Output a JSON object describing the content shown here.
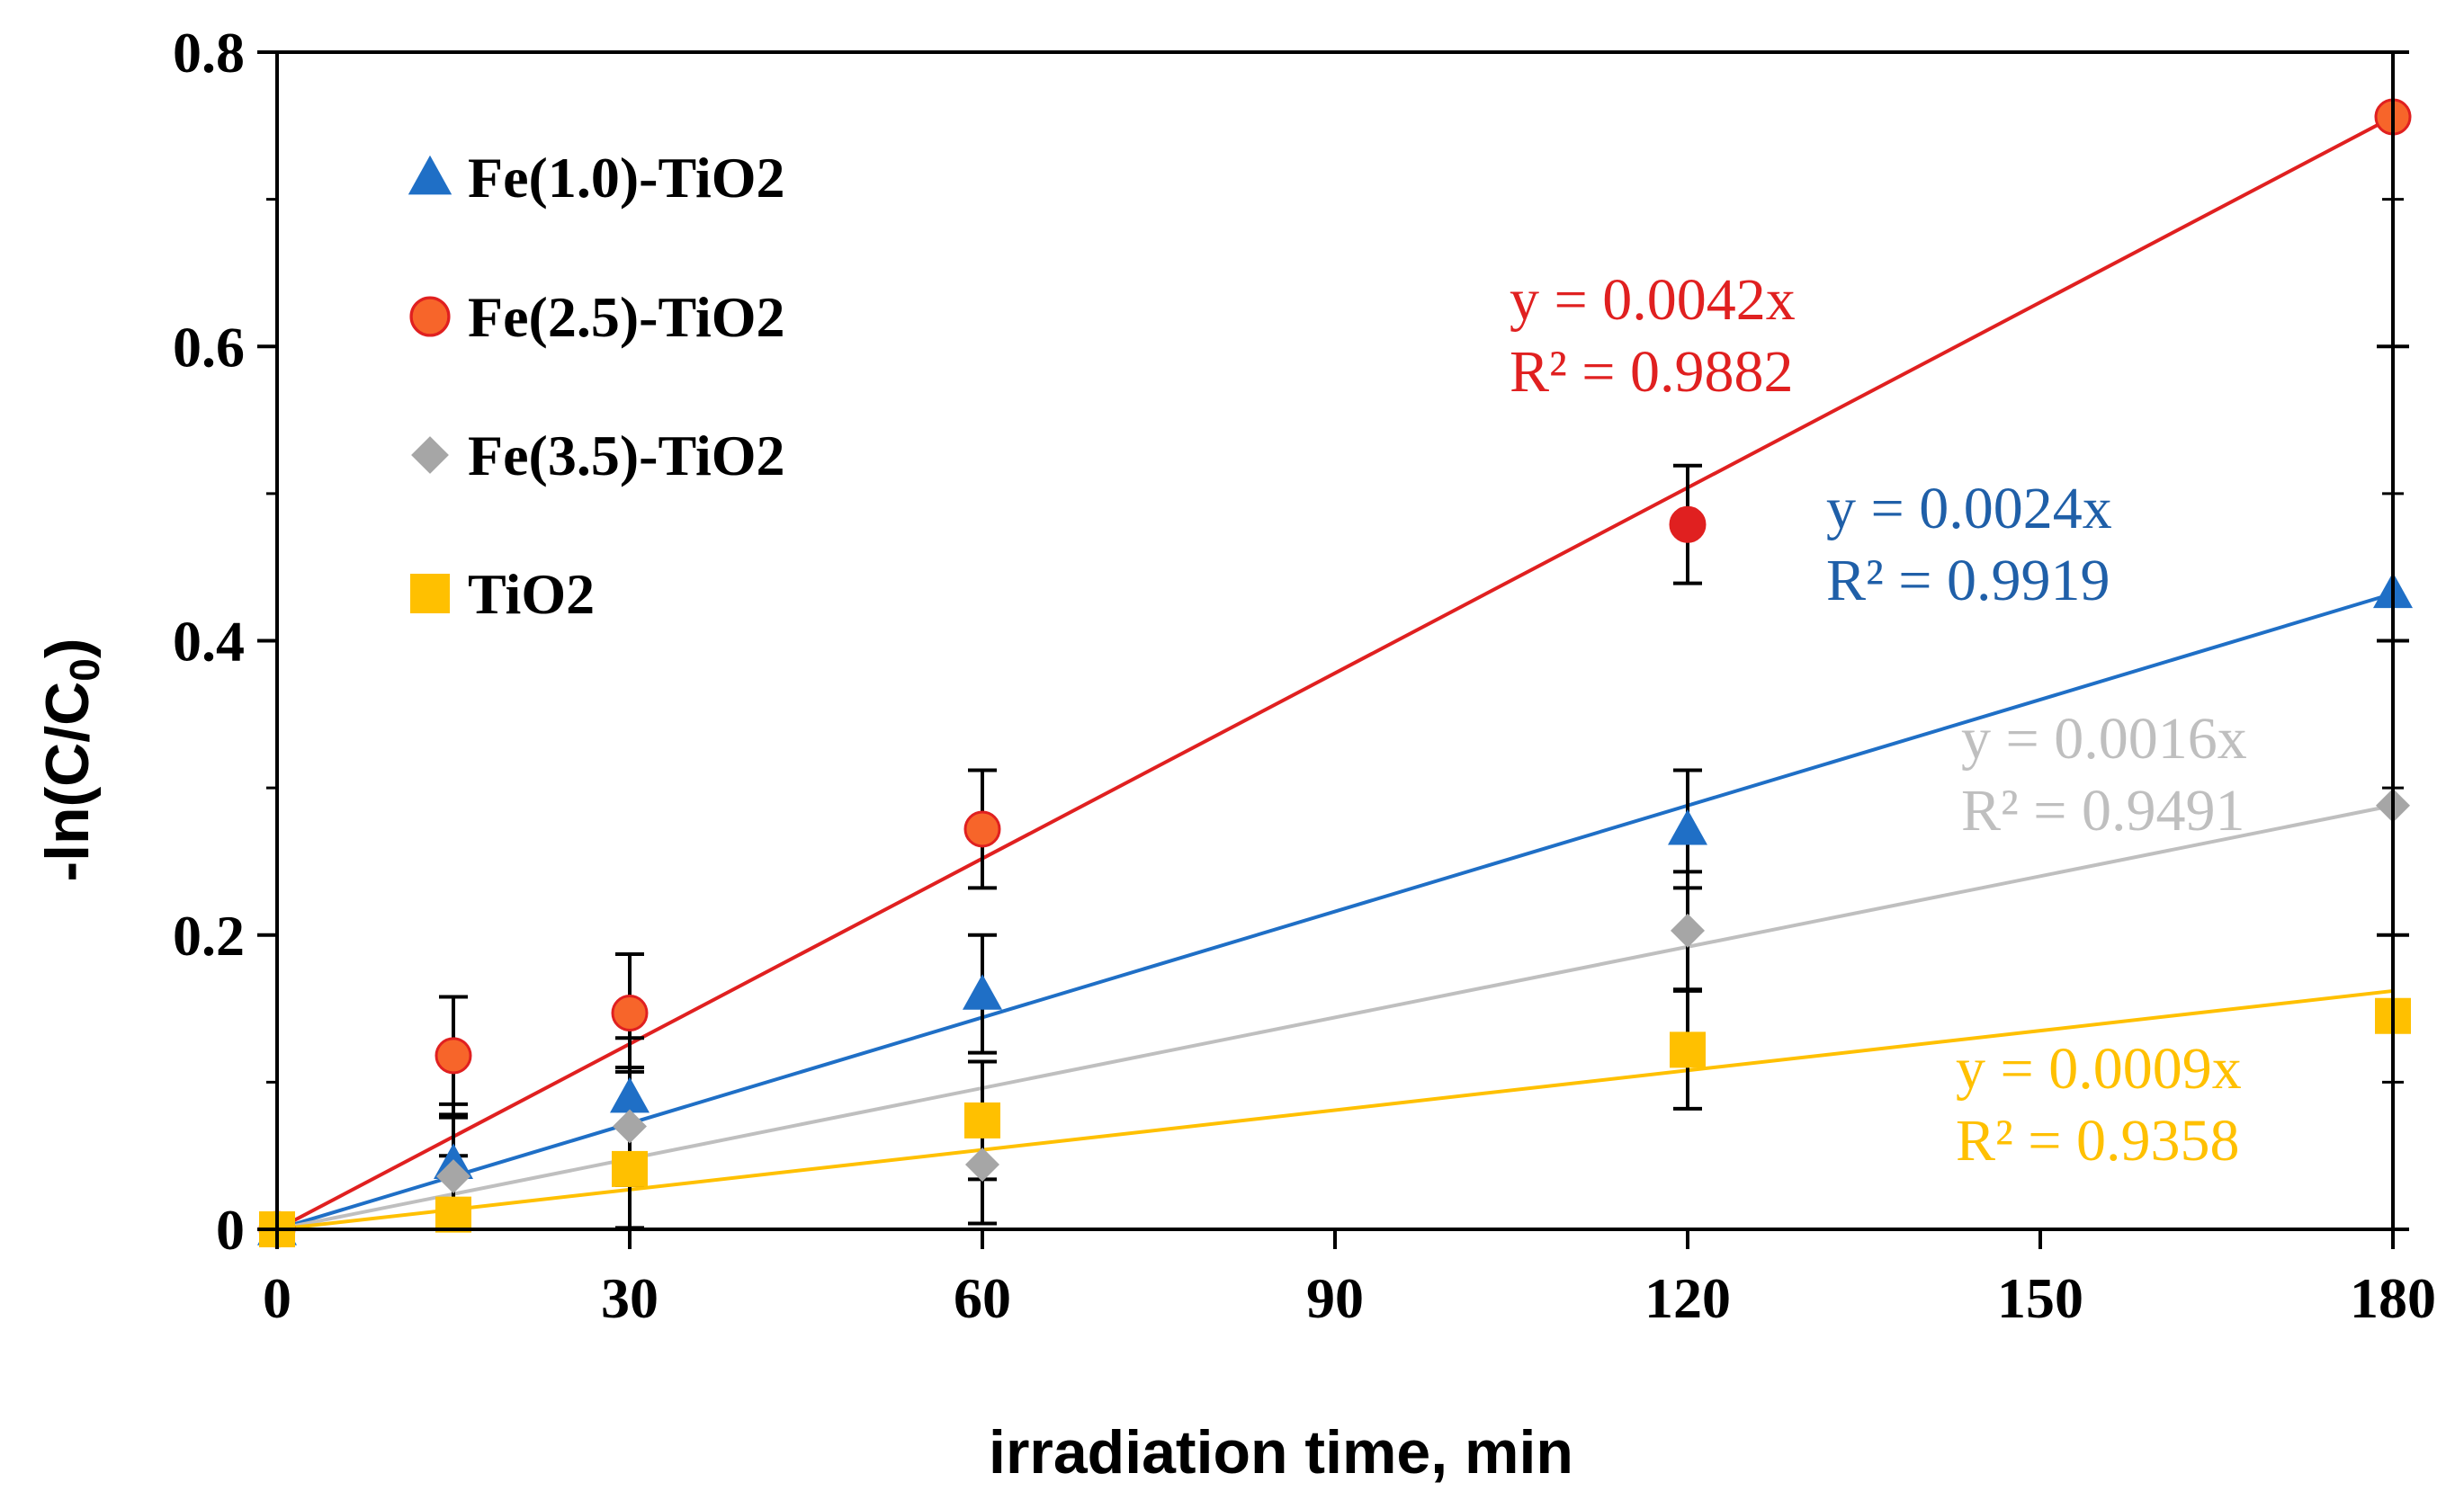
{
  "chart_data": {
    "type": "scatter",
    "title": "",
    "xlabel": "irradiation time, min",
    "ylabel": "-ln(C/C0)",
    "ylabel_main": "-ln(C/C",
    "ylabel_sub": "0",
    "ylabel_close": ")",
    "xlim": [
      0,
      180
    ],
    "ylim": [
      0,
      0.8
    ],
    "xticks": [
      0,
      30,
      60,
      90,
      120,
      150,
      180
    ],
    "xtick_labels": [
      "0",
      "30",
      "60",
      "90",
      "120",
      "150",
      "180"
    ],
    "yticks": [
      0,
      0.2,
      0.4,
      0.6,
      0.8
    ],
    "ytick_labels": [
      "0",
      "0.2",
      "0.4",
      "0.6",
      "0.8"
    ],
    "grid": false,
    "legend_position": "top-left",
    "series": [
      {
        "name": "Fe(1.0)-TiO2",
        "marker": "triangle",
        "color": "#1f6fc6",
        "x": [
          0,
          15,
          30,
          60,
          120,
          180
        ],
        "y": [
          0,
          0.045,
          0.09,
          0.16,
          0.272,
          0.433
        ],
        "error": [
          0,
          0.04,
          0.04,
          0.04,
          0.04,
          0
        ],
        "trendline": {
          "slope": 0.0024,
          "equation": "y = 0.0024x",
          "r2": "R² = 0.9919"
        }
      },
      {
        "name": "Fe(2.5)-TiO2",
        "marker": "circle",
        "color": "#f7652a",
        "x": [
          0,
          15,
          30,
          60,
          120,
          180
        ],
        "y": [
          0,
          0.118,
          0.147,
          0.272,
          0.479,
          0.756
        ],
        "error": [
          0,
          0.04,
          0.04,
          0.04,
          0.04,
          0
        ],
        "trendline": {
          "slope": 0.0042,
          "equation": "y = 0.0042x",
          "r2": "R² = 0.9882"
        }
      },
      {
        "name": "Fe(3.5)-TiO2",
        "marker": "diamond",
        "color": "#a6a6a6",
        "x": [
          0,
          15,
          30,
          60,
          120,
          180
        ],
        "y": [
          0,
          0.036,
          0.07,
          0.044,
          0.203,
          0.288
        ],
        "error": [
          0,
          0.04,
          0.04,
          0.04,
          0.04,
          0
        ],
        "trendline": {
          "slope": 0.0016,
          "equation": "y = 0.0016x",
          "r2": "R² = 0.9491"
        }
      },
      {
        "name": "TiO2",
        "marker": "square",
        "color": "#ffc000",
        "x": [
          0,
          15,
          30,
          60,
          120,
          180
        ],
        "y": [
          0,
          0.01,
          0.041,
          0.074,
          0.122,
          0.145
        ],
        "error": [
          0,
          0.04,
          0.04,
          0.04,
          0.04,
          0
        ],
        "trendline": {
          "slope": 0.0009,
          "equation": "y = 0.0009x",
          "r2": "R² = 0.9358"
        }
      }
    ]
  }
}
